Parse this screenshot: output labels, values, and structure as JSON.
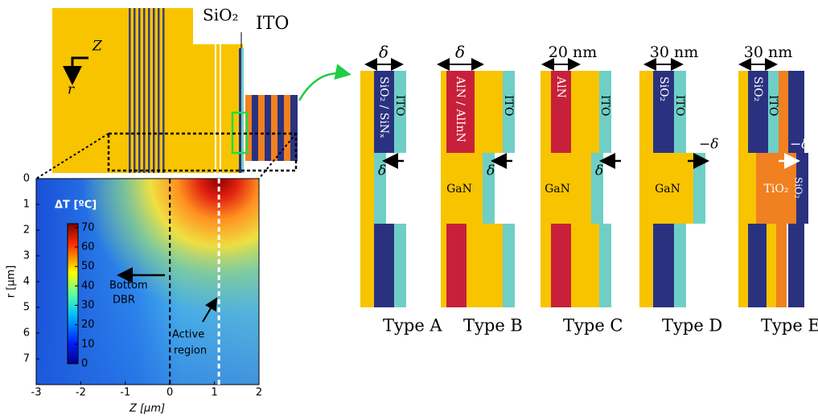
{
  "structure_labels": {
    "sio2": "SiO₂",
    "ito": "ITO",
    "z_axis": "Z",
    "r_axis": "r"
  },
  "heatmap": {
    "xlabel": "Z [µm]",
    "ylabel": "r [µm]",
    "xlim": [
      -3,
      2
    ],
    "xticks": [
      -3,
      -2,
      -1,
      0,
      1,
      2
    ],
    "ylim": [
      0,
      8
    ],
    "yticks": [
      0,
      1,
      2,
      3,
      4,
      5,
      6,
      7
    ],
    "colorbar": {
      "title": "ΔT [ºC]",
      "clim": [
        0,
        72
      ],
      "ticks": [
        0,
        10,
        20,
        30,
        40,
        50,
        60,
        70
      ]
    },
    "bottom_dbr": [
      "Bottom",
      "DBR"
    ],
    "active_region": [
      "Active",
      "region"
    ],
    "boundaries": [
      0,
      1.1
    ]
  },
  "types": [
    {
      "label": "Type A",
      "dim": "δ",
      "layers": [
        "SiO₂ / SiNₓ",
        "ITO"
      ],
      "shift": "δ"
    },
    {
      "label": "Type B",
      "dim": "δ",
      "layers": [
        "AlN / AlInN",
        "ITO"
      ],
      "middle": "GaN",
      "shift": "δ"
    },
    {
      "label": "Type C",
      "dim": "20 nm",
      "layers": [
        "AlN",
        "ITO"
      ],
      "middle": "GaN",
      "shift": "δ"
    },
    {
      "label": "Type D",
      "dim": "30 nm",
      "layers": [
        "SiO₂",
        "ITO"
      ],
      "middle": "GaN",
      "shift": "−δ"
    },
    {
      "label": "Type E",
      "dim": "30 nm",
      "layers": [
        "SiO₂",
        "ITO"
      ],
      "middle": "TiO₂",
      "side": "SiO₂",
      "shift": "−δ"
    }
  ]
}
